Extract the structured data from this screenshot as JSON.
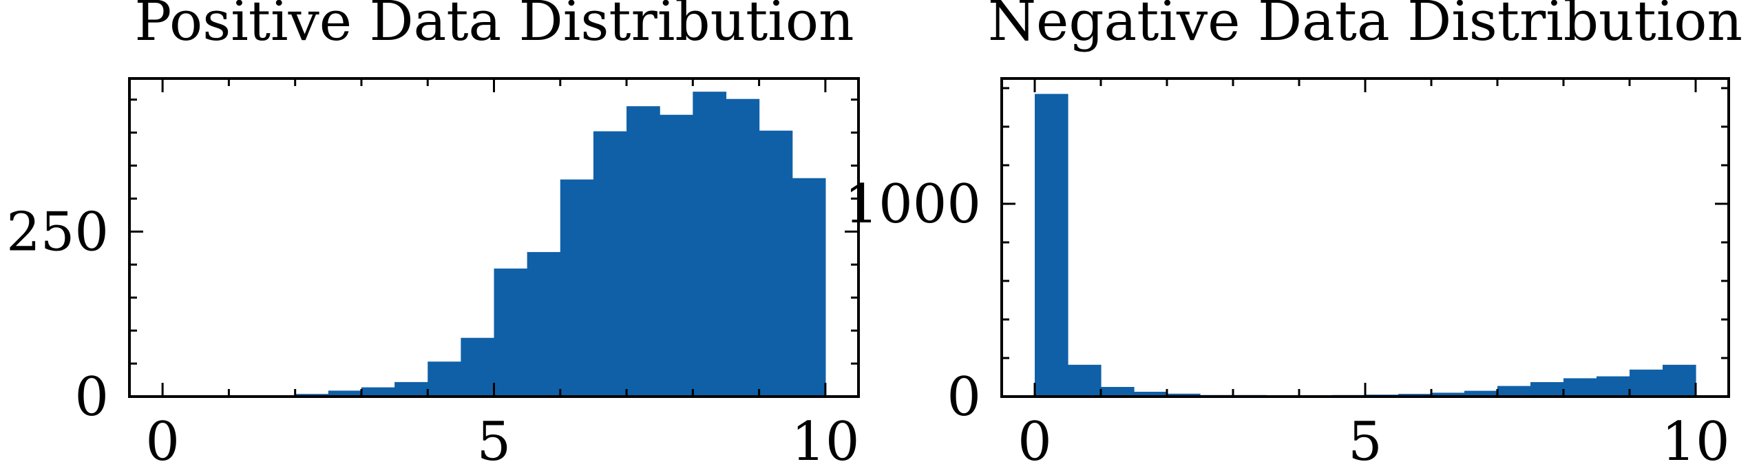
{
  "chart_data": [
    {
      "type": "bar",
      "title": "Positive Data Distribution",
      "xlabel": "",
      "ylabel": "",
      "xlim": [
        -0.5,
        10.5
      ],
      "ylim": [
        0,
        482
      ],
      "bin_width": 0.5,
      "x_ticks": [
        0,
        5,
        10
      ],
      "y_ticks": [
        0,
        250
      ],
      "bins": [
        {
          "x0": 0.0,
          "x1": 0.5,
          "value": 0
        },
        {
          "x0": 0.5,
          "x1": 1.0,
          "value": 1
        },
        {
          "x0": 1.0,
          "x1": 1.5,
          "value": 1
        },
        {
          "x0": 1.5,
          "x1": 2.0,
          "value": 2
        },
        {
          "x0": 2.0,
          "x1": 2.5,
          "value": 4
        },
        {
          "x0": 2.5,
          "x1": 3.0,
          "value": 9
        },
        {
          "x0": 3.0,
          "x1": 3.5,
          "value": 14
        },
        {
          "x0": 3.5,
          "x1": 4.0,
          "value": 22
        },
        {
          "x0": 4.0,
          "x1": 4.5,
          "value": 53
        },
        {
          "x0": 4.5,
          "x1": 5.0,
          "value": 89
        },
        {
          "x0": 5.0,
          "x1": 5.5,
          "value": 194
        },
        {
          "x0": 5.5,
          "x1": 6.0,
          "value": 219
        },
        {
          "x0": 6.0,
          "x1": 6.5,
          "value": 329
        },
        {
          "x0": 6.5,
          "x1": 7.0,
          "value": 402
        },
        {
          "x0": 7.0,
          "x1": 7.5,
          "value": 440
        },
        {
          "x0": 7.5,
          "x1": 8.0,
          "value": 427
        },
        {
          "x0": 8.0,
          "x1": 8.5,
          "value": 462
        },
        {
          "x0": 8.5,
          "x1": 9.0,
          "value": 451
        },
        {
          "x0": 9.0,
          "x1": 9.5,
          "value": 403
        },
        {
          "x0": 9.5,
          "x1": 10.0,
          "value": 331
        }
      ],
      "color": "#1060a8"
    },
    {
      "type": "bar",
      "title": "Negative Data Distribution",
      "xlabel": "",
      "ylabel": "",
      "xlim": [
        -0.5,
        10.5
      ],
      "ylim": [
        0,
        1650
      ],
      "bin_width": 0.5,
      "x_ticks": [
        0,
        5,
        10
      ],
      "y_ticks": [
        0,
        1000
      ],
      "bins": [
        {
          "x0": 0.0,
          "x1": 0.5,
          "value": 1570
        },
        {
          "x0": 0.5,
          "x1": 1.0,
          "value": 165
        },
        {
          "x0": 1.0,
          "x1": 1.5,
          "value": 50
        },
        {
          "x0": 1.5,
          "x1": 2.0,
          "value": 25
        },
        {
          "x0": 2.0,
          "x1": 2.5,
          "value": 15
        },
        {
          "x0": 2.5,
          "x1": 3.0,
          "value": 8
        },
        {
          "x0": 3.0,
          "x1": 3.5,
          "value": 8
        },
        {
          "x0": 3.5,
          "x1": 4.0,
          "value": 6
        },
        {
          "x0": 4.0,
          "x1": 4.5,
          "value": 6
        },
        {
          "x0": 4.5,
          "x1": 5.0,
          "value": 8
        },
        {
          "x0": 5.0,
          "x1": 5.5,
          "value": 10
        },
        {
          "x0": 5.5,
          "x1": 6.0,
          "value": 14
        },
        {
          "x0": 6.0,
          "x1": 6.5,
          "value": 20
        },
        {
          "x0": 6.5,
          "x1": 7.0,
          "value": 30
        },
        {
          "x0": 7.0,
          "x1": 7.5,
          "value": 55
        },
        {
          "x0": 7.5,
          "x1": 8.0,
          "value": 75
        },
        {
          "x0": 8.0,
          "x1": 8.5,
          "value": 95
        },
        {
          "x0": 8.5,
          "x1": 9.0,
          "value": 105
        },
        {
          "x0": 9.0,
          "x1": 9.5,
          "value": 140
        },
        {
          "x0": 9.5,
          "x1": 10.0,
          "value": 165
        }
      ],
      "color": "#1060a8"
    }
  ]
}
